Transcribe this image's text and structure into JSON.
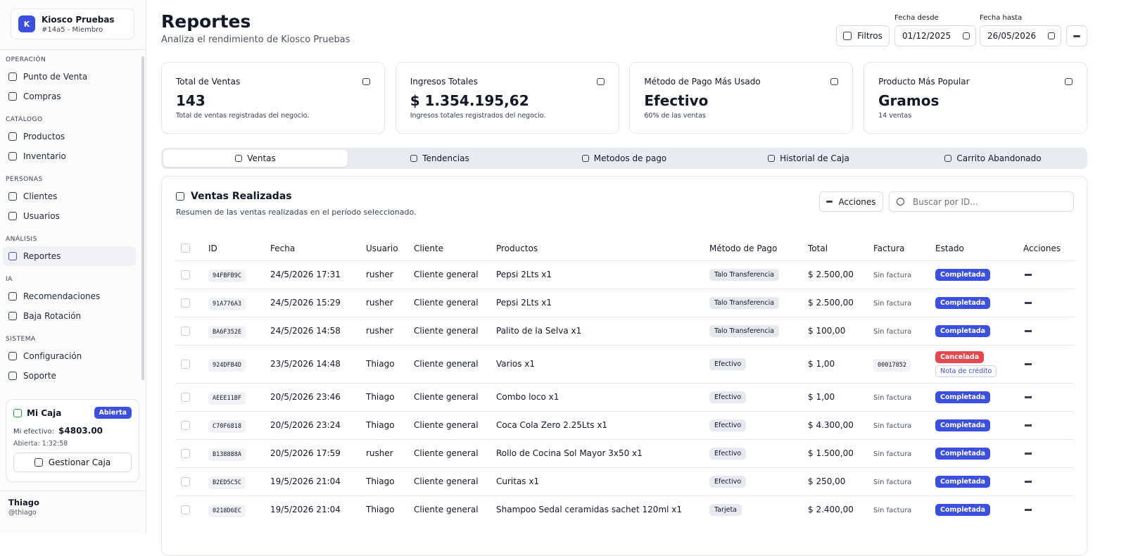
{
  "sidebar": {
    "org": {
      "initial": "K",
      "name": "Kiosco Pruebas",
      "sub": "#14a5 - Miembro"
    },
    "sections": [
      {
        "title": "OPERACIÓN",
        "items": [
          "Punto de Venta",
          "Compras"
        ]
      },
      {
        "title": "CATÁLOGO",
        "items": [
          "Productos",
          "Inventario"
        ]
      },
      {
        "title": "PERSONAS",
        "items": [
          "Clientes",
          "Usuarios"
        ]
      },
      {
        "title": "ANÁLISIS",
        "items": [
          "Reportes"
        ]
      },
      {
        "title": "IA",
        "items": [
          "Recomendaciones",
          "Baja Rotación"
        ]
      },
      {
        "title": "SISTEMA",
        "items": [
          "Configuración",
          "Soporte"
        ]
      }
    ],
    "cash": {
      "title": "Mi Caja",
      "badge": "Abierta",
      "cash_label": "Mi efectivo:",
      "cash_value": "$4803.00",
      "opened": "Abierta: 1:32:58",
      "button": "Gestionar Caja"
    },
    "user": {
      "name": "Thiago",
      "handle": "@thiago"
    }
  },
  "header": {
    "title": "Reportes",
    "subtitle": "Analiza el rendimiento de Kiosco Pruebas",
    "filters": "Filtros",
    "date_from_label": "Fecha desde",
    "date_from": "01/12/2025",
    "date_to_label": "Fecha hasta",
    "date_to": "26/05/2026"
  },
  "stats": [
    {
      "title": "Total de Ventas",
      "value": "143",
      "note": "Total de ventas registradas del negocio."
    },
    {
      "title": "Ingresos Totales",
      "value": "$ 1.354.195,62",
      "note": "Ingresos totales registrados del negocio."
    },
    {
      "title": "Método de Pago Más Usado",
      "value": "Efectivo",
      "note": "60% de las ventas"
    },
    {
      "title": "Producto Más Popular",
      "value": "Gramos",
      "note": "14 ventas"
    }
  ],
  "tabs": [
    "Ventas",
    "Tendencias",
    "Metodos de pago",
    "Historial de Caja",
    "Carrito Abandonado"
  ],
  "panel": {
    "title": "Ventas Realizadas",
    "subtitle": "Resumen de las ventas realizadas en el período seleccionado.",
    "actions": "Acciones",
    "search_placeholder": "Buscar por ID..."
  },
  "table": {
    "columns": [
      "ID",
      "Fecha",
      "Usuario",
      "Cliente",
      "Productos",
      "Método de Pago",
      "Total",
      "Factura",
      "Estado",
      "Acciones"
    ],
    "rows": [
      {
        "id": "94FBFB9C",
        "date": "24/5/2026 17:31",
        "user": "rusher",
        "client": "Cliente general",
        "products": "Pepsi 2Lts x1",
        "method": "Talo Transferencia",
        "total": "$ 2.500,00",
        "invoice": "Sin factura",
        "status": "Completada"
      },
      {
        "id": "91A776A3",
        "date": "24/5/2026 15:29",
        "user": "rusher",
        "client": "Cliente general",
        "products": "Pepsi 2Lts x1",
        "method": "Talo Transferencia",
        "total": "$ 2.500,00",
        "invoice": "Sin factura",
        "status": "Completada"
      },
      {
        "id": "BA6F352E",
        "date": "24/5/2026 14:58",
        "user": "rusher",
        "client": "Cliente general",
        "products": "Palito de la Selva x1",
        "method": "Talo Transferencia",
        "total": "$ 100,00",
        "invoice": "Sin factura",
        "status": "Completada"
      },
      {
        "id": "924DFB4D",
        "date": "23/5/2026 14:48",
        "user": "Thiago",
        "client": "Cliente general",
        "products": "Varios x1",
        "method": "Efectivo",
        "total": "$ 1,00",
        "invoice": "00017852",
        "status": "Cancelada",
        "note": "Nota de crédito"
      },
      {
        "id": "AEEE11BF",
        "date": "20/5/2026 23:46",
        "user": "Thiago",
        "client": "Cliente general",
        "products": "Combo loco x1",
        "method": "Efectivo",
        "total": "$ 1,00",
        "invoice": "Sin factura",
        "status": "Completada"
      },
      {
        "id": "C70F6818",
        "date": "20/5/2026 23:24",
        "user": "Thiago",
        "client": "Cliente general",
        "products": "Coca Cola Zero 2.25Lts x1",
        "method": "Efectivo",
        "total": "$ 4.300,00",
        "invoice": "Sin factura",
        "status": "Completada"
      },
      {
        "id": "B138888A",
        "date": "20/5/2026 17:59",
        "user": "rusher",
        "client": "Cliente general",
        "products": "Rollo de Cocina Sol Mayor 3x50 x1",
        "method": "Efectivo",
        "total": "$ 1.500,00",
        "invoice": "Sin factura",
        "status": "Completada"
      },
      {
        "id": "B2ED5C5C",
        "date": "19/5/2026 21:04",
        "user": "Thiago",
        "client": "Cliente general",
        "products": "Curitas x1",
        "method": "Efectivo",
        "total": "$ 250,00",
        "invoice": "Sin factura",
        "status": "Completada"
      },
      {
        "id": "0218D6EC",
        "date": "19/5/2026 21:04",
        "user": "Thiago",
        "client": "Cliente general",
        "products": "Shampoo Sedal ceramidas sachet 120ml x1",
        "method": "Tarjeta",
        "total": "$ 2.400,00",
        "invoice": "Sin factura",
        "status": "Completada"
      }
    ]
  }
}
